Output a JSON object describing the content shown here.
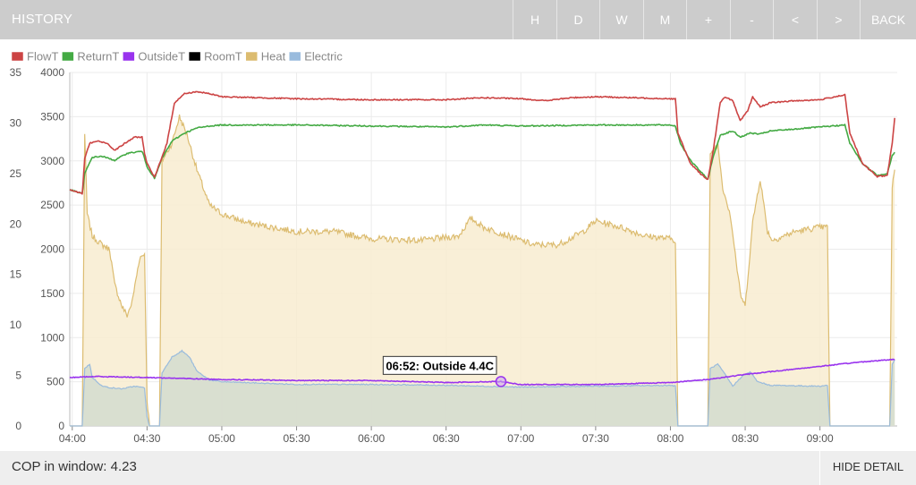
{
  "header": {
    "title": "HISTORY",
    "buttons": [
      {
        "label": "H"
      },
      {
        "label": "D"
      },
      {
        "label": "W"
      },
      {
        "label": "M"
      },
      {
        "label": "+"
      },
      {
        "label": "-"
      },
      {
        "label": "<"
      },
      {
        "label": ">"
      },
      {
        "label": "BACK"
      }
    ]
  },
  "footer": {
    "cop_label": "COP in window: 4.23",
    "hide_detail_label": "HIDE DETAIL"
  },
  "tooltip": {
    "text": "06:52: Outside 4.4C"
  },
  "chart_data": {
    "type": "line",
    "x_ticks": [
      "04:00",
      "04:30",
      "05:00",
      "05:30",
      "06:00",
      "06:30",
      "07:00",
      "07:30",
      "08:00",
      "08:30",
      "09:00"
    ],
    "x_range": [
      "03:59",
      "09:31"
    ],
    "y_left": {
      "ylim": [
        0,
        35
      ],
      "ticks": [
        0,
        5,
        10,
        15,
        20,
        25,
        30,
        35
      ]
    },
    "y_right": {
      "ylim": [
        0,
        4000
      ],
      "ticks": [
        0,
        500,
        1000,
        1500,
        2000,
        2500,
        3000,
        3500,
        4000
      ]
    },
    "grid": true,
    "legend_position": "top-left",
    "series": [
      {
        "name": "FlowT",
        "axis": "left",
        "color": "#cc4444",
        "points": [
          [
            "03:59",
            23.4
          ],
          [
            "04:04",
            23.0
          ],
          [
            "04:05",
            26.5
          ],
          [
            "04:07",
            28.0
          ],
          [
            "04:10",
            28.2
          ],
          [
            "04:14",
            28.0
          ],
          [
            "04:17",
            27.3
          ],
          [
            "04:20",
            27.8
          ],
          [
            "04:25",
            28.6
          ],
          [
            "04:28",
            28.6
          ],
          [
            "04:29",
            27.0
          ],
          [
            "04:30",
            26.0
          ],
          [
            "04:33",
            24.6
          ],
          [
            "04:38",
            28.0
          ],
          [
            "04:41",
            32.0
          ],
          [
            "04:45",
            32.9
          ],
          [
            "04:50",
            33.1
          ],
          [
            "04:55",
            32.9
          ],
          [
            "05:00",
            32.6
          ],
          [
            "05:30",
            32.4
          ],
          [
            "06:00",
            32.3
          ],
          [
            "06:30",
            32.3
          ],
          [
            "06:45",
            32.5
          ],
          [
            "07:00",
            32.4
          ],
          [
            "07:10",
            32.2
          ],
          [
            "07:20",
            32.5
          ],
          [
            "07:30",
            32.6
          ],
          [
            "08:00",
            32.4
          ],
          [
            "08:02",
            32.4
          ],
          [
            "08:03",
            29.0
          ],
          [
            "08:08",
            26.0
          ],
          [
            "08:12",
            25.0
          ],
          [
            "08:15",
            24.4
          ],
          [
            "08:17",
            27.0
          ],
          [
            "08:20",
            32.0
          ],
          [
            "08:22",
            32.6
          ],
          [
            "08:25",
            32.2
          ],
          [
            "08:28",
            30.2
          ],
          [
            "08:31",
            31.2
          ],
          [
            "08:33",
            32.6
          ],
          [
            "08:36",
            31.6
          ],
          [
            "08:40",
            32.0
          ],
          [
            "08:50",
            32.2
          ],
          [
            "09:00",
            32.3
          ],
          [
            "09:10",
            32.8
          ],
          [
            "09:12",
            29.0
          ],
          [
            "09:17",
            26.0
          ],
          [
            "09:23",
            24.7
          ],
          [
            "09:27",
            24.8
          ],
          [
            "09:29",
            28.0
          ],
          [
            "09:30",
            30.5
          ]
        ]
      },
      {
        "name": "ReturnT",
        "axis": "left",
        "color": "#44aa44",
        "points": [
          [
            "03:59",
            23.4
          ],
          [
            "04:04",
            23.0
          ],
          [
            "04:05",
            25.0
          ],
          [
            "04:08",
            26.6
          ],
          [
            "04:12",
            26.7
          ],
          [
            "04:17",
            26.3
          ],
          [
            "04:22",
            27.0
          ],
          [
            "04:28",
            27.2
          ],
          [
            "04:29",
            26.5
          ],
          [
            "04:30",
            25.7
          ],
          [
            "04:33",
            24.5
          ],
          [
            "04:36",
            26.5
          ],
          [
            "04:40",
            28.2
          ],
          [
            "04:45",
            29.0
          ],
          [
            "04:50",
            29.5
          ],
          [
            "04:55",
            29.7
          ],
          [
            "05:00",
            29.8
          ],
          [
            "05:30",
            29.8
          ],
          [
            "06:00",
            29.7
          ],
          [
            "06:30",
            29.6
          ],
          [
            "06:45",
            29.8
          ],
          [
            "07:00",
            29.7
          ],
          [
            "07:30",
            29.8
          ],
          [
            "08:00",
            29.8
          ],
          [
            "08:02",
            29.7
          ],
          [
            "08:04",
            28.0
          ],
          [
            "08:08",
            26.3
          ],
          [
            "08:15",
            24.4
          ],
          [
            "08:17",
            26.5
          ],
          [
            "08:20",
            28.8
          ],
          [
            "08:25",
            29.2
          ],
          [
            "08:28",
            28.6
          ],
          [
            "08:32",
            29.0
          ],
          [
            "08:36",
            28.9
          ],
          [
            "08:40",
            29.2
          ],
          [
            "08:50",
            29.4
          ],
          [
            "09:00",
            29.6
          ],
          [
            "09:10",
            29.8
          ],
          [
            "09:12",
            28.0
          ],
          [
            "09:17",
            26.0
          ],
          [
            "09:23",
            24.8
          ],
          [
            "09:27",
            25.0
          ],
          [
            "09:29",
            26.8
          ],
          [
            "09:30",
            27.1
          ]
        ]
      },
      {
        "name": "OutsideT",
        "axis": "left",
        "color": "#9933ee",
        "points": [
          [
            "03:59",
            4.8
          ],
          [
            "04:10",
            4.9
          ],
          [
            "04:30",
            4.8
          ],
          [
            "05:00",
            4.6
          ],
          [
            "05:30",
            4.5
          ],
          [
            "06:00",
            4.5
          ],
          [
            "06:30",
            4.3
          ],
          [
            "06:52",
            4.4
          ],
          [
            "07:00",
            4.1
          ],
          [
            "07:30",
            4.1
          ],
          [
            "08:00",
            4.3
          ],
          [
            "08:15",
            4.6
          ],
          [
            "08:30",
            5.1
          ],
          [
            "08:45",
            5.5
          ],
          [
            "09:00",
            5.9
          ],
          [
            "09:15",
            6.3
          ],
          [
            "09:30",
            6.6
          ]
        ]
      },
      {
        "name": "RoomT",
        "axis": "left",
        "color": "#000000",
        "points": []
      },
      {
        "name": "Heat",
        "axis": "right",
        "color": "#dcbc70",
        "fill": "#f8ecd0",
        "points": [
          [
            "03:59",
            0
          ],
          [
            "04:04",
            0
          ],
          [
            "04:05",
            3300
          ],
          [
            "04:06",
            2400
          ],
          [
            "04:08",
            2150
          ],
          [
            "04:12",
            2050
          ],
          [
            "04:15",
            2000
          ],
          [
            "04:17",
            1600
          ],
          [
            "04:20",
            1350
          ],
          [
            "04:22",
            1250
          ],
          [
            "04:24",
            1400
          ],
          [
            "04:27",
            1900
          ],
          [
            "04:29",
            1950
          ],
          [
            "04:30",
            300
          ],
          [
            "04:31",
            0
          ],
          [
            "04:35",
            0
          ],
          [
            "04:36",
            3000
          ],
          [
            "04:40",
            3200
          ],
          [
            "04:43",
            3500
          ],
          [
            "04:46",
            3300
          ],
          [
            "04:50",
            2900
          ],
          [
            "04:55",
            2500
          ],
          [
            "05:00",
            2400
          ],
          [
            "05:10",
            2300
          ],
          [
            "05:20",
            2250
          ],
          [
            "05:30",
            2200
          ],
          [
            "05:45",
            2200
          ],
          [
            "06:00",
            2120
          ],
          [
            "06:20",
            2100
          ],
          [
            "06:35",
            2150
          ],
          [
            "06:40",
            2350
          ],
          [
            "06:45",
            2250
          ],
          [
            "06:55",
            2150
          ],
          [
            "07:05",
            2050
          ],
          [
            "07:15",
            2050
          ],
          [
            "07:25",
            2200
          ],
          [
            "07:30",
            2320
          ],
          [
            "07:40",
            2250
          ],
          [
            "07:50",
            2150
          ],
          [
            "08:00",
            2120
          ],
          [
            "08:02",
            2100
          ],
          [
            "08:03",
            0
          ],
          [
            "08:15",
            0
          ],
          [
            "08:16",
            3050
          ],
          [
            "08:19",
            3200
          ],
          [
            "08:21",
            2700
          ],
          [
            "08:24",
            2400
          ],
          [
            "08:28",
            1500
          ],
          [
            "08:30",
            1350
          ],
          [
            "08:33",
            2300
          ],
          [
            "08:36",
            2800
          ],
          [
            "08:39",
            2200
          ],
          [
            "08:41",
            2100
          ],
          [
            "08:50",
            2200
          ],
          [
            "09:00",
            2250
          ],
          [
            "09:03",
            2250
          ],
          [
            "09:04",
            0
          ],
          [
            "09:28",
            0
          ],
          [
            "09:29",
            2700
          ],
          [
            "09:30",
            2900
          ]
        ]
      },
      {
        "name": "Electric",
        "axis": "right",
        "color": "#99bbdd",
        "fill": "#d3dccf",
        "points": [
          [
            "03:59",
            0
          ],
          [
            "04:04",
            0
          ],
          [
            "04:05",
            650
          ],
          [
            "04:07",
            700
          ],
          [
            "04:08",
            550
          ],
          [
            "04:12",
            450
          ],
          [
            "04:16",
            430
          ],
          [
            "04:20",
            420
          ],
          [
            "04:25",
            450
          ],
          [
            "04:29",
            430
          ],
          [
            "04:30",
            100
          ],
          [
            "04:31",
            0
          ],
          [
            "04:35",
            0
          ],
          [
            "04:36",
            600
          ],
          [
            "04:40",
            780
          ],
          [
            "04:44",
            850
          ],
          [
            "04:47",
            780
          ],
          [
            "04:50",
            620
          ],
          [
            "04:55",
            520
          ],
          [
            "05:00",
            500
          ],
          [
            "05:30",
            470
          ],
          [
            "06:00",
            470
          ],
          [
            "06:30",
            460
          ],
          [
            "07:00",
            440
          ],
          [
            "07:30",
            450
          ],
          [
            "08:00",
            460
          ],
          [
            "08:02",
            450
          ],
          [
            "08:03",
            0
          ],
          [
            "08:15",
            0
          ],
          [
            "08:16",
            650
          ],
          [
            "08:19",
            700
          ],
          [
            "08:22",
            580
          ],
          [
            "08:25",
            450
          ],
          [
            "08:29",
            570
          ],
          [
            "08:32",
            610
          ],
          [
            "08:35",
            500
          ],
          [
            "08:40",
            460
          ],
          [
            "09:00",
            450
          ],
          [
            "09:03",
            460
          ],
          [
            "09:04",
            0
          ],
          [
            "09:28",
            0
          ],
          [
            "09:29",
            700
          ],
          [
            "09:30",
            750
          ]
        ]
      }
    ]
  }
}
